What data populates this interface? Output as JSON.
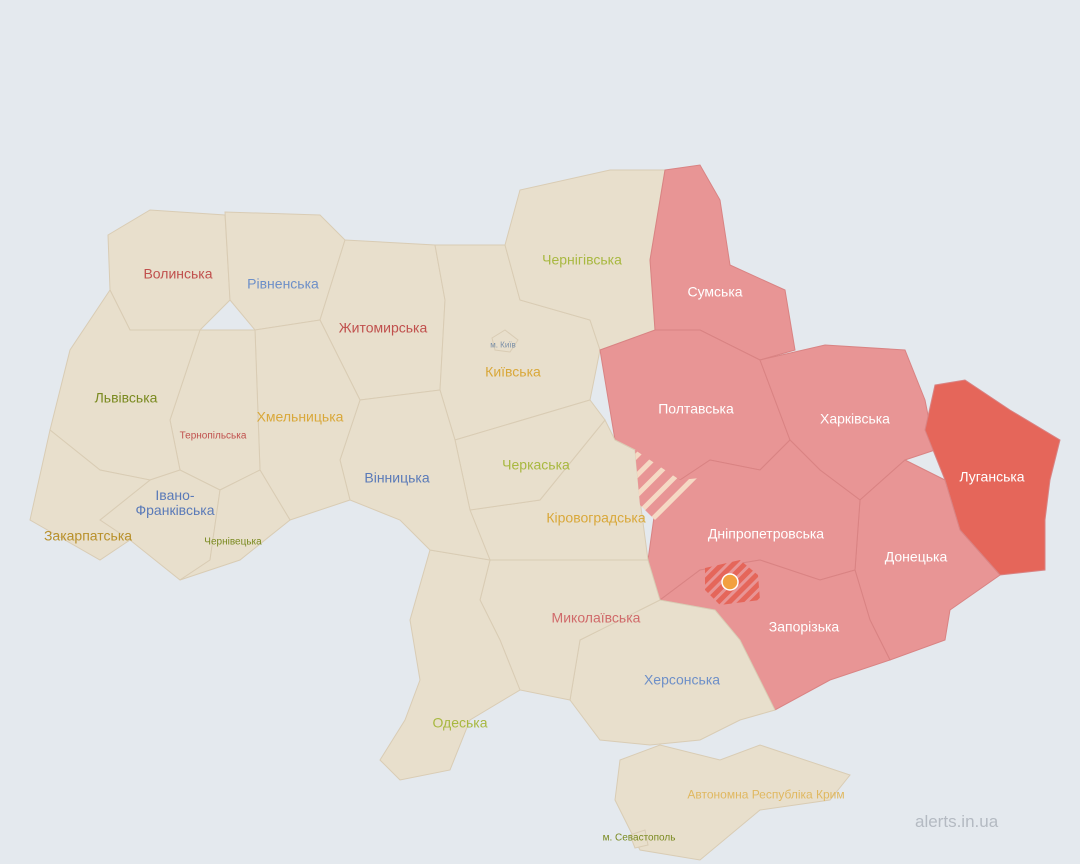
{
  "colors": {
    "background": "#e4e9ee",
    "no_alert": "#e8dfcc",
    "alert": "#e89595",
    "alert_strong": "#e5665a",
    "hatch": "#f5d9c4"
  },
  "regions": [
    {
      "id": "volyn",
      "label": "Волинська",
      "color": "#c0504d",
      "status": "none"
    },
    {
      "id": "rivne",
      "label": "Рівненська",
      "color": "#6d8fc8",
      "status": "none"
    },
    {
      "id": "zhytomyr",
      "label": "Житомирська",
      "color": "#c0504d",
      "status": "none"
    },
    {
      "id": "kyiv",
      "label": "Київська",
      "color": "#d9a83a",
      "status": "none"
    },
    {
      "id": "kyiv_city",
      "label": "м. Київ",
      "color": "#7a8fa8",
      "status": "none"
    },
    {
      "id": "chernihiv",
      "label": "Чернігівська",
      "color": "#a8b840",
      "status": "none"
    },
    {
      "id": "sumy",
      "label": "Сумська",
      "color": "#ffffff",
      "status": "alert"
    },
    {
      "id": "poltava",
      "label": "Полтавська",
      "color": "#ffffff",
      "status": "alert"
    },
    {
      "id": "kharkiv",
      "label": "Харківська",
      "color": "#ffffff",
      "status": "alert"
    },
    {
      "id": "luhansk",
      "label": "Луганська",
      "color": "#ffffff",
      "status": "alert_strong"
    },
    {
      "id": "donetsk",
      "label": "Донецька",
      "color": "#ffffff",
      "status": "alert"
    },
    {
      "id": "dnipro",
      "label": "Дніпропетровська",
      "color": "#ffffff",
      "status": "alert"
    },
    {
      "id": "zaporizhzhia",
      "label": "Запорізька",
      "color": "#ffffff",
      "status": "alert"
    },
    {
      "id": "kherson",
      "label": "Херсонська",
      "color": "#6d8fc8",
      "status": "none"
    },
    {
      "id": "mykolaiv",
      "label": "Миколаївська",
      "color": "#d06a6a",
      "status": "none"
    },
    {
      "id": "kirovohrad",
      "label": "Кіровоградська",
      "color": "#d9a83a",
      "status": "partial"
    },
    {
      "id": "cherkasy",
      "label": "Черкаська",
      "color": "#a8b840",
      "status": "none"
    },
    {
      "id": "odesa",
      "label": "Одеська",
      "color": "#a8b840",
      "status": "none"
    },
    {
      "id": "vinnytsia",
      "label": "Вінницька",
      "color": "#5a7ab8",
      "status": "none"
    },
    {
      "id": "khmelnytskyi",
      "label": "Хмельницька",
      "color": "#d9a83a",
      "status": "none"
    },
    {
      "id": "ternopil",
      "label": "Тернопільська",
      "color": "#c0504d",
      "status": "none"
    },
    {
      "id": "lviv",
      "label": "Львівська",
      "color": "#7a8a20",
      "status": "none"
    },
    {
      "id": "ivano_frankivsk",
      "label": "Івано-Франківська",
      "color": "#5a7ab8",
      "status": "none"
    },
    {
      "id": "zakarpattia",
      "label": "Закарпатська",
      "color": "#b8902a",
      "status": "none"
    },
    {
      "id": "chernivtsi",
      "label": "Чернівецька",
      "color": "#7a8a20",
      "status": "none"
    },
    {
      "id": "crimea",
      "label": "Автономна Республіка Крим",
      "color": "#e0b860",
      "status": "none"
    },
    {
      "id": "sevastopol",
      "label": "м. Севастополь",
      "color": "#7a8a20",
      "status": "none"
    }
  ],
  "watermark": "alerts.in.ua"
}
